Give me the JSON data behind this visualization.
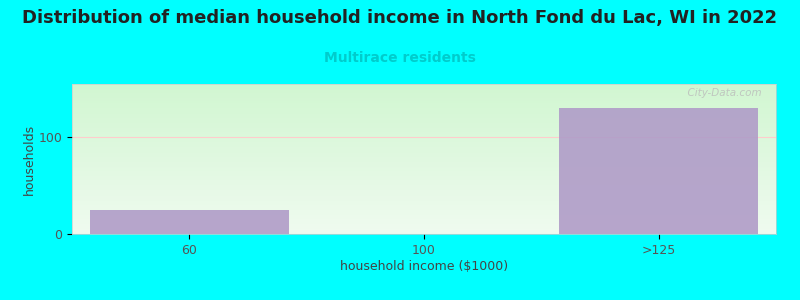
{
  "title": "Distribution of median household income in North Fond du Lac, WI in 2022",
  "subtitle": "Multirace residents",
  "subtitle_color": "#00cccc",
  "categories": [
    "60",
    "100",
    ">125"
  ],
  "values": [
    25,
    0,
    130
  ],
  "bar_color": "#b09cc8",
  "bar_alpha": 0.9,
  "xlabel": "household income ($1000)",
  "ylabel": "households",
  "ylim": [
    0,
    155
  ],
  "yticks": [
    0,
    100
  ],
  "background_color": "#00ffff",
  "plot_bg_left": "#e8f5e8",
  "plot_bg_right": "#f8fff8",
  "grid_color": "#ffcccc",
  "watermark": "  City-Data.com",
  "title_fontsize": 13,
  "subtitle_fontsize": 10,
  "axis_label_fontsize": 9,
  "tick_fontsize": 9
}
